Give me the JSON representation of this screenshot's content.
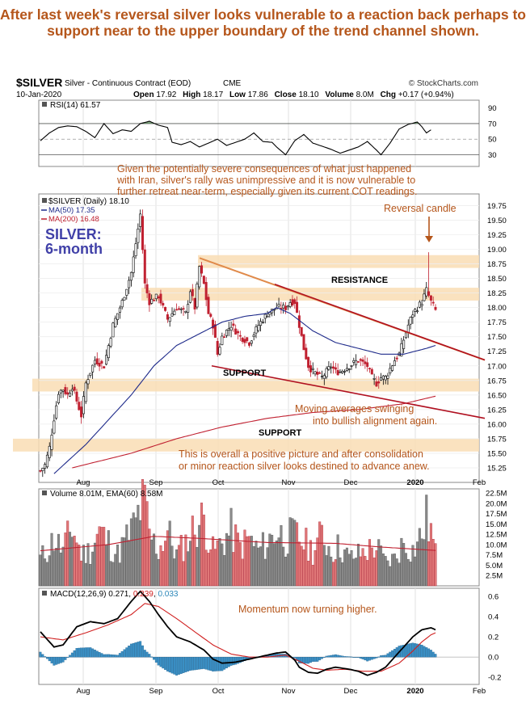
{
  "headline": "After last week's reversal silver looks vulnerable to a reaction back perhaps to support near to the upper boundary of the trend channel shown.",
  "chart_data": {
    "type": "line",
    "header": {
      "symbol": "$SILVER",
      "description": "Silver - Continuous Contract (EOD)",
      "exchange": "CME",
      "source": "© StockCharts.com",
      "date": "10-Jan-2020",
      "open_label": "Open",
      "open": "17.92",
      "high_label": "High",
      "high": "18.17",
      "low_label": "Low",
      "low": "17.86",
      "close_label": "Close",
      "close": "18.10",
      "volume_label": "Volume",
      "volume": "8.0M",
      "chg_label": "Chg",
      "chg": "+0.17 (+0.94%)"
    },
    "x_labels": [
      "Aug",
      "Sep",
      "Oct",
      "Nov",
      "Dec",
      "2020",
      "Feb"
    ],
    "rsi": {
      "legend": "RSI(14) 61.57",
      "ticks": [
        90,
        70,
        50,
        30
      ],
      "ylim": [
        15,
        100
      ],
      "anchors": [
        [
          0,
          48
        ],
        [
          4,
          58
        ],
        [
          8,
          65
        ],
        [
          12,
          67
        ],
        [
          16,
          66
        ],
        [
          20,
          60
        ],
        [
          24,
          52
        ],
        [
          28,
          70
        ],
        [
          32,
          57
        ],
        [
          36,
          62
        ],
        [
          40,
          60
        ],
        [
          44,
          70
        ],
        [
          48,
          73
        ],
        [
          52,
          68
        ],
        [
          56,
          65
        ],
        [
          58,
          46
        ],
        [
          62,
          43
        ],
        [
          66,
          47
        ],
        [
          70,
          40
        ],
        [
          74,
          45
        ],
        [
          78,
          50
        ],
        [
          82,
          42
        ],
        [
          86,
          46
        ],
        [
          90,
          50
        ],
        [
          94,
          58
        ],
        [
          98,
          47
        ],
        [
          102,
          46
        ],
        [
          104,
          40
        ],
        [
          108,
          30
        ],
        [
          112,
          48
        ],
        [
          116,
          56
        ],
        [
          120,
          45
        ],
        [
          124,
          41
        ],
        [
          128,
          37
        ],
        [
          132,
          32
        ],
        [
          136,
          36
        ],
        [
          140,
          40
        ],
        [
          144,
          47
        ],
        [
          148,
          36
        ],
        [
          150,
          30
        ],
        [
          154,
          45
        ],
        [
          158,
          63
        ],
        [
          162,
          69
        ],
        [
          166,
          72
        ],
        [
          168,
          66
        ],
        [
          170,
          58
        ],
        [
          172,
          62
        ]
      ]
    },
    "price": {
      "legend": "$SILVER (Daily) 18.10",
      "ma50_legend": "MA(50) 17.35",
      "ma200_legend": "MA(200) 16.48",
      "title_line1": "SILVER:",
      "title_line2": "6-month",
      "ticks": [
        19.75,
        19.5,
        19.25,
        19.0,
        18.75,
        18.5,
        18.25,
        18.0,
        17.75,
        17.5,
        17.25,
        17.0,
        16.75,
        16.5,
        16.25,
        16.0,
        15.75,
        15.5,
        15.25
      ],
      "ylim": [
        15.0,
        19.95
      ],
      "anchors": [
        [
          0,
          15.2
        ],
        [
          2,
          15.3
        ],
        [
          4,
          15.6
        ],
        [
          6,
          16.1
        ],
        [
          8,
          16.55
        ],
        [
          10,
          16.6
        ],
        [
          12,
          16.5
        ],
        [
          14,
          16.65
        ],
        [
          16,
          16.4
        ],
        [
          18,
          16.15
        ],
        [
          20,
          16.7
        ],
        [
          24,
          17.1
        ],
        [
          28,
          17.0
        ],
        [
          32,
          17.7
        ],
        [
          36,
          18.1
        ],
        [
          40,
          18.6
        ],
        [
          44,
          19.6
        ],
        [
          46,
          18.4
        ],
        [
          48,
          18.1
        ],
        [
          52,
          18.2
        ],
        [
          56,
          17.8
        ],
        [
          60,
          18.0
        ],
        [
          64,
          17.9
        ],
        [
          66,
          18.3
        ],
        [
          68,
          18.0
        ],
        [
          70,
          18.7
        ],
        [
          72,
          18.4
        ],
        [
          74,
          17.9
        ],
        [
          76,
          17.7
        ],
        [
          78,
          17.2
        ],
        [
          80,
          17.5
        ],
        [
          84,
          17.7
        ],
        [
          88,
          17.5
        ],
        [
          92,
          17.4
        ],
        [
          96,
          17.7
        ],
        [
          100,
          17.9
        ],
        [
          104,
          18.0
        ],
        [
          108,
          18.0
        ],
        [
          110,
          18.1
        ],
        [
          112,
          18.1
        ],
        [
          114,
          17.7
        ],
        [
          116,
          17.3
        ],
        [
          118,
          17.0
        ],
        [
          120,
          16.9
        ],
        [
          124,
          16.8
        ],
        [
          128,
          17.0
        ],
        [
          130,
          16.9
        ],
        [
          132,
          16.9
        ],
        [
          136,
          17.0
        ],
        [
          140,
          17.1
        ],
        [
          144,
          17.0
        ],
        [
          146,
          16.8
        ],
        [
          148,
          16.7
        ],
        [
          150,
          16.8
        ],
        [
          152,
          16.8
        ],
        [
          156,
          17.1
        ],
        [
          158,
          17.2
        ],
        [
          162,
          17.7
        ],
        [
          164,
          17.9
        ],
        [
          166,
          18.0
        ],
        [
          168,
          18.1
        ],
        [
          170,
          18.3
        ],
        [
          171,
          18.2
        ],
        [
          172,
          18.1
        ],
        [
          174,
          17.95
        ]
      ],
      "ma50_anchors": [
        [
          6,
          15.15
        ],
        [
          20,
          15.65
        ],
        [
          40,
          16.5
        ],
        [
          50,
          17.0
        ],
        [
          60,
          17.35
        ],
        [
          70,
          17.55
        ],
        [
          80,
          17.75
        ],
        [
          90,
          17.85
        ],
        [
          100,
          17.9
        ],
        [
          104,
          18.0
        ],
        [
          110,
          17.9
        ],
        [
          120,
          17.6
        ],
        [
          130,
          17.4
        ],
        [
          140,
          17.3
        ],
        [
          150,
          17.2
        ],
        [
          160,
          17.2
        ],
        [
          170,
          17.3
        ],
        [
          174,
          17.35
        ]
      ],
      "ma200_anchors": [
        [
          14,
          15.25
        ],
        [
          40,
          15.5
        ],
        [
          60,
          15.75
        ],
        [
          80,
          15.95
        ],
        [
          100,
          16.1
        ],
        [
          120,
          16.2
        ],
        [
          140,
          16.25
        ],
        [
          160,
          16.35
        ],
        [
          174,
          16.48
        ]
      ],
      "resistance_label": "RESISTANCE",
      "support_label_1": "SUPPORT",
      "support_label_2": "SUPPORT",
      "annotations": [
        "Given the potentially severe consequences of what just happened",
        "with Iran, silver's rally was unimpressive and it is now vulnerable to",
        "further retreat near-term, especially given its current COT readings."
      ],
      "reversal_label": "Reversal candle",
      "ma_note_line1": "Moving averages swinging",
      "ma_note_line2": "into bullish alignment again.",
      "bottom_note_line1": "This is overall a positive picture and after consolidation",
      "bottom_note_line2": "or minor reaction silver looks destined to advance anew."
    },
    "volume": {
      "legend_prefix": "Volume 8.01M, EMA(60) 8.58M",
      "ticks": [
        "22.5M",
        "20.0M",
        "17.5M",
        "15.0M",
        "12.5M",
        "10.0M",
        "7.5M",
        "5.0M",
        "2.5M"
      ],
      "tick_values": [
        22.5,
        20.0,
        17.5,
        15.0,
        12.5,
        10.0,
        7.5,
        5.0,
        2.5
      ],
      "ylim": [
        0,
        23.5
      ],
      "anchors": [
        [
          0,
          7
        ],
        [
          3,
          9
        ],
        [
          6,
          12
        ],
        [
          10,
          9
        ],
        [
          14,
          15
        ],
        [
          18,
          8
        ],
        [
          22,
          9
        ],
        [
          26,
          14
        ],
        [
          30,
          11
        ],
        [
          34,
          8
        ],
        [
          38,
          12
        ],
        [
          42,
          16
        ],
        [
          44,
          20
        ],
        [
          46,
          21
        ],
        [
          48,
          13
        ],
        [
          52,
          9
        ],
        [
          56,
          14
        ],
        [
          60,
          8
        ],
        [
          64,
          11
        ],
        [
          68,
          15
        ],
        [
          72,
          17
        ],
        [
          76,
          9
        ],
        [
          80,
          11
        ],
        [
          84,
          14
        ],
        [
          88,
          10
        ],
        [
          92,
          12
        ],
        [
          96,
          9
        ],
        [
          100,
          11
        ],
        [
          104,
          14
        ],
        [
          108,
          12
        ],
        [
          112,
          13
        ],
        [
          116,
          11
        ],
        [
          120,
          9
        ],
        [
          124,
          13
        ],
        [
          128,
          9
        ],
        [
          132,
          10
        ],
        [
          136,
          7
        ],
        [
          140,
          8
        ],
        [
          144,
          9
        ],
        [
          148,
          10
        ],
        [
          152,
          6
        ],
        [
          156,
          7
        ],
        [
          160,
          11
        ],
        [
          164,
          9
        ],
        [
          168,
          13
        ],
        [
          170,
          17
        ],
        [
          172,
          14
        ],
        [
          174,
          8
        ]
      ],
      "ema_anchors": [
        [
          0,
          8.5
        ],
        [
          30,
          10
        ],
        [
          50,
          12
        ],
        [
          70,
          11.5
        ],
        [
          100,
          10.5
        ],
        [
          130,
          10.3
        ],
        [
          150,
          9.4
        ],
        [
          174,
          8.58
        ]
      ]
    },
    "macd": {
      "legend_name": "MACD(12,26,9)",
      "macd_value": "0.271",
      "signal_value": "0.239",
      "hist_value": "0.033",
      "note": "Momentum now turning higher.",
      "ticks": [
        0.6,
        0.4,
        0.2,
        0.0,
        -0.2
      ],
      "ylim": [
        -0.27,
        0.68
      ],
      "macd_anchors": [
        [
          0,
          0.25
        ],
        [
          6,
          0.1
        ],
        [
          10,
          0.12
        ],
        [
          16,
          0.3
        ],
        [
          22,
          0.35
        ],
        [
          28,
          0.33
        ],
        [
          34,
          0.38
        ],
        [
          40,
          0.55
        ],
        [
          44,
          0.65
        ],
        [
          48,
          0.55
        ],
        [
          52,
          0.42
        ],
        [
          56,
          0.3
        ],
        [
          60,
          0.2
        ],
        [
          66,
          0.15
        ],
        [
          72,
          0.07
        ],
        [
          76,
          -0.02
        ],
        [
          80,
          -0.06
        ],
        [
          86,
          -0.05
        ],
        [
          92,
          -0.02
        ],
        [
          96,
          0.0
        ],
        [
          100,
          0.02
        ],
        [
          104,
          0.04
        ],
        [
          108,
          0.05
        ],
        [
          112,
          -0.03
        ],
        [
          114,
          -0.1
        ],
        [
          118,
          -0.15
        ],
        [
          122,
          -0.16
        ],
        [
          126,
          -0.12
        ],
        [
          130,
          -0.1
        ],
        [
          136,
          -0.12
        ],
        [
          140,
          -0.14
        ],
        [
          144,
          -0.18
        ],
        [
          148,
          -0.15
        ],
        [
          152,
          -0.1
        ],
        [
          158,
          0.05
        ],
        [
          164,
          0.2
        ],
        [
          168,
          0.27
        ],
        [
          172,
          0.29
        ],
        [
          174,
          0.27
        ]
      ],
      "signal_anchors": [
        [
          0,
          0.2
        ],
        [
          10,
          0.17
        ],
        [
          20,
          0.24
        ],
        [
          30,
          0.32
        ],
        [
          40,
          0.42
        ],
        [
          46,
          0.53
        ],
        [
          52,
          0.5
        ],
        [
          60,
          0.38
        ],
        [
          68,
          0.25
        ],
        [
          76,
          0.12
        ],
        [
          84,
          0.03
        ],
        [
          92,
          0.0
        ],
        [
          100,
          0.0
        ],
        [
          108,
          0.02
        ],
        [
          114,
          -0.04
        ],
        [
          120,
          -0.11
        ],
        [
          126,
          -0.13
        ],
        [
          134,
          -0.12
        ],
        [
          142,
          -0.14
        ],
        [
          150,
          -0.14
        ],
        [
          158,
          -0.06
        ],
        [
          164,
          0.06
        ],
        [
          168,
          0.15
        ],
        [
          172,
          0.22
        ],
        [
          174,
          0.24
        ]
      ]
    }
  }
}
